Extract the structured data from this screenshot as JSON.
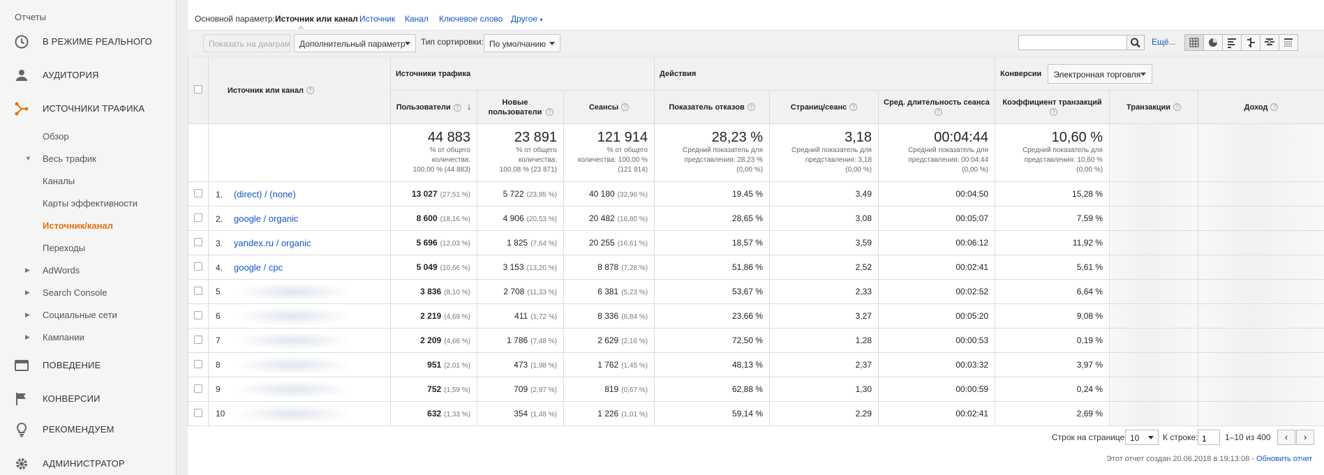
{
  "sidebar": {
    "reports_label": "Отчеты",
    "sections": {
      "realtime": "В РЕЖИМЕ РЕАЛЬНОГО",
      "audience": "АУДИТОРИЯ",
      "acquisition": "ИСТОЧНИКИ ТРАФИКА",
      "behavior": "ПОВЕДЕНИЕ",
      "conversions": "КОНВЕРСИИ",
      "recommend": "РЕКОМЕНДУЕМ",
      "admin": "АДМИНИСТРАТОР"
    },
    "acquisition_items": {
      "overview": "Обзор",
      "all_traffic": "Весь трафик",
      "channels": "Каналы",
      "treemaps": "Карты эффективности",
      "source_medium": "Источник/канал",
      "referrals": "Переходы",
      "adwords": "AdWords",
      "search_console": "Search Console",
      "social": "Социальные сети",
      "campaigns": "Кампании"
    },
    "accent_color": "#e8710a"
  },
  "dimension_bar": {
    "label": "Основной параметр:",
    "active": "Источник или канал",
    "links": [
      "Источник",
      "Канал",
      "Ключевое слово",
      "Другое"
    ]
  },
  "toolbar": {
    "plot_rows": "Показать на диаграмме",
    "secondary_dimension": "Дополнительный параметр",
    "sort_type_label": "Тип сортировки:",
    "sort_type_value": "По умолчанию",
    "search_value": "",
    "more_link": "Ещё..."
  },
  "table": {
    "header": {
      "dimension": "Источник или канал",
      "group_acquisition": "Источники трафика",
      "group_behavior": "Действия",
      "group_conversions": "Конверсии",
      "conversion_select": "Электронная торговля",
      "users": "Пользователи",
      "new_users": "Новые пользователи",
      "sessions": "Сеансы",
      "bounce_rate": "Показатель отказов",
      "pages_session": "Страниц/сеанс",
      "avg_duration": "Сред. длительность сеанса",
      "ecom_rate": "Коэффициент транзакций",
      "transactions": "Транзакции",
      "revenue": "Доход"
    },
    "totals": {
      "users": {
        "big": "44 883",
        "l1": "% от общего",
        "l2": "количества:",
        "l3": "100,00 % (44 883)"
      },
      "new_users": {
        "big": "23 891",
        "l1": "% от общего",
        "l2": "количества:",
        "l3": "100,08 % (23 871)"
      },
      "sessions": {
        "big": "121 914",
        "l1": "% от общего",
        "l2": "количества: 100,00 %",
        "l3": "(121 914)"
      },
      "bounce_rate": {
        "big": "28,23 %",
        "l1": "Средний показатель для",
        "l2": "представления: 28,23 %",
        "l3": "(0,00 %)"
      },
      "pages_session": {
        "big": "3,18",
        "l1": "Средний показатель для",
        "l2": "представления: 3,18",
        "l3": "(0,00 %)"
      },
      "avg_duration": {
        "big": "00:04:44",
        "l1": "Средний показатель для",
        "l2": "представления: 00:04:44",
        "l3": "(0,00 %)"
      },
      "ecom_rate": {
        "big": "10,60 %",
        "l1": "Средний показатель для",
        "l2": "представления: 10,60 %",
        "l3": "(0,00 %)"
      }
    },
    "rows": [
      {
        "idx": "1.",
        "source": "(direct) / (none)",
        "users": "13 027",
        "users_pct": "(27,51 %)",
        "new_users": "5 722",
        "new_users_pct": "(23,95 %)",
        "sessions": "40 180",
        "sessions_pct": "(32,96 %)",
        "bounce": "19,45 %",
        "pages": "3,49",
        "duration": "00:04:50",
        "ecom": "15,28 %"
      },
      {
        "idx": "2.",
        "source": "google / organic",
        "users": "8 600",
        "users_pct": "(18,16 %)",
        "new_users": "4 906",
        "new_users_pct": "(20,53 %)",
        "sessions": "20 482",
        "sessions_pct": "(16,80 %)",
        "bounce": "28,65 %",
        "pages": "3,08",
        "duration": "00:05:07",
        "ecom": "7,59 %"
      },
      {
        "idx": "3.",
        "source": "yandex.ru / organic",
        "users": "5 696",
        "users_pct": "(12,03 %)",
        "new_users": "1 825",
        "new_users_pct": "(7,64 %)",
        "sessions": "20 255",
        "sessions_pct": "(16,61 %)",
        "bounce": "18,57 %",
        "pages": "3,59",
        "duration": "00:06:12",
        "ecom": "11,92 %"
      },
      {
        "idx": "4.",
        "source": "google / cpc",
        "users": "5 049",
        "users_pct": "(10,66 %)",
        "new_users": "3 153",
        "new_users_pct": "(13,20 %)",
        "sessions": "8 878",
        "sessions_pct": "(7,28 %)",
        "bounce": "51,86 %",
        "pages": "2,52",
        "duration": "00:02:41",
        "ecom": "5,61 %"
      },
      {
        "idx": "5",
        "source": "",
        "users": "3 836",
        "users_pct": "(8,10 %)",
        "new_users": "2 708",
        "new_users_pct": "(11,33 %)",
        "sessions": "6 381",
        "sessions_pct": "(5,23 %)",
        "bounce": "53,67 %",
        "pages": "2,33",
        "duration": "00:02:52",
        "ecom": "6,64 %"
      },
      {
        "idx": "6",
        "source": "",
        "users": "2 219",
        "users_pct": "(4,69 %)",
        "new_users": "411",
        "new_users_pct": "(1,72 %)",
        "sessions": "8 336",
        "sessions_pct": "(6,84 %)",
        "bounce": "23,66 %",
        "pages": "3,27",
        "duration": "00:05:20",
        "ecom": "9,08 %"
      },
      {
        "idx": "7",
        "source": "",
        "users": "2 209",
        "users_pct": "(4,66 %)",
        "new_users": "1 786",
        "new_users_pct": "(7,48 %)",
        "sessions": "2 629",
        "sessions_pct": "(2,16 %)",
        "bounce": "72,50 %",
        "pages": "1,28",
        "duration": "00:00:53",
        "ecom": "0,19 %"
      },
      {
        "idx": "8",
        "source": "",
        "users": "951",
        "users_pct": "(2,01 %)",
        "new_users": "473",
        "new_users_pct": "(1,98 %)",
        "sessions": "1 762",
        "sessions_pct": "(1,45 %)",
        "bounce": "48,13 %",
        "pages": "2,37",
        "duration": "00:03:32",
        "ecom": "3,97 %"
      },
      {
        "idx": "9",
        "source": "",
        "users": "752",
        "users_pct": "(1,59 %)",
        "new_users": "709",
        "new_users_pct": "(2,97 %)",
        "sessions": "819",
        "sessions_pct": "(0,67 %)",
        "bounce": "62,88 %",
        "pages": "1,30",
        "duration": "00:00:59",
        "ecom": "0,24 %"
      },
      {
        "idx": "10",
        "source": "",
        "users": "632",
        "users_pct": "(1,33 %)",
        "new_users": "354",
        "new_users_pct": "(1,48 %)",
        "sessions": "1 226",
        "sessions_pct": "(1,01 %)",
        "bounce": "59,14 %",
        "pages": "2,29",
        "duration": "00:02:41",
        "ecom": "2,69 %"
      }
    ]
  },
  "pagination": {
    "rows_label": "Строк на странице:",
    "rows_value": "10",
    "goto_label": "К строке:",
    "goto_value": "1",
    "range": "1–10 из 400",
    "prev": "‹",
    "next": "›"
  },
  "report_footer": {
    "created": "Этот отчет создан 20.06.2018 в 19:13:08 -",
    "refresh_link": "Обновить отчет"
  },
  "colors": {
    "link": "#1155cc",
    "accent": "#e8710a",
    "header_bg": "#f1f1f1"
  }
}
